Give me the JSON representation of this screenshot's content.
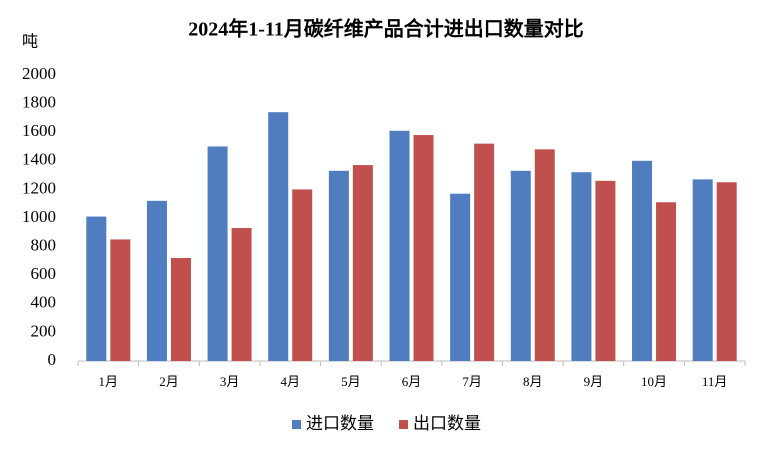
{
  "chart_data": {
    "type": "bar",
    "title": "2024年1-11月碳纤维产品合计进出口数量对比",
    "y_label": "吨",
    "categories": [
      "1月",
      "2月",
      "3月",
      "4月",
      "5月",
      "6月",
      "7月",
      "8月",
      "9月",
      "10月",
      "11月"
    ],
    "series": [
      {
        "name": "进口数量",
        "color": "#4f7dbf",
        "values": [
          1010,
          1120,
          1500,
          1740,
          1330,
          1610,
          1170,
          1330,
          1320,
          1400,
          1270
        ]
      },
      {
        "name": "出口数量",
        "color": "#c0504d",
        "values": [
          850,
          720,
          930,
          1200,
          1370,
          1580,
          1520,
          1480,
          1260,
          1110,
          1250
        ]
      }
    ],
    "ylim": [
      0,
      2000
    ],
    "yticks": [
      0,
      200,
      400,
      600,
      800,
      1000,
      1200,
      1400,
      1600,
      1800,
      2000
    ],
    "grid": false
  }
}
